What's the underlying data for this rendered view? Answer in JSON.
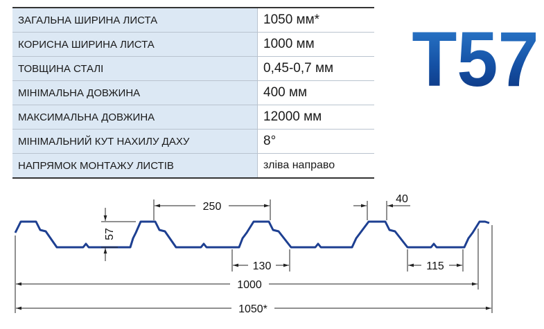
{
  "table": {
    "rows": [
      [
        "ЗАГАЛЬНА ШИРИНА ЛИСТА",
        "1050 мм*"
      ],
      [
        "КОРИСНА ШИРИНА ЛИСТА",
        "1000 мм"
      ],
      [
        "ТОВЩИНА СТАЛІ",
        "0,45-0,7 мм"
      ],
      [
        "МІНІМАЛЬНА ДОВЖИНА",
        "400 мм"
      ],
      [
        "МАКСИМАЛЬНА ДОВЖИНА",
        "12000 мм"
      ],
      [
        "МІНІМАЛЬНИЙ КУТ НАХИЛУ ДАХУ",
        "8°"
      ],
      [
        "НАПРЯМОК МОНТАЖУ ЛИСТІВ",
        "зліва направо"
      ]
    ]
  },
  "logo": "T57",
  "dimensions": {
    "pitch": "250",
    "height": "57",
    "top_width": "40",
    "bottom_width": "130",
    "bottom_flat": "115",
    "useful_width": "1000",
    "total_width": "1050*"
  }
}
